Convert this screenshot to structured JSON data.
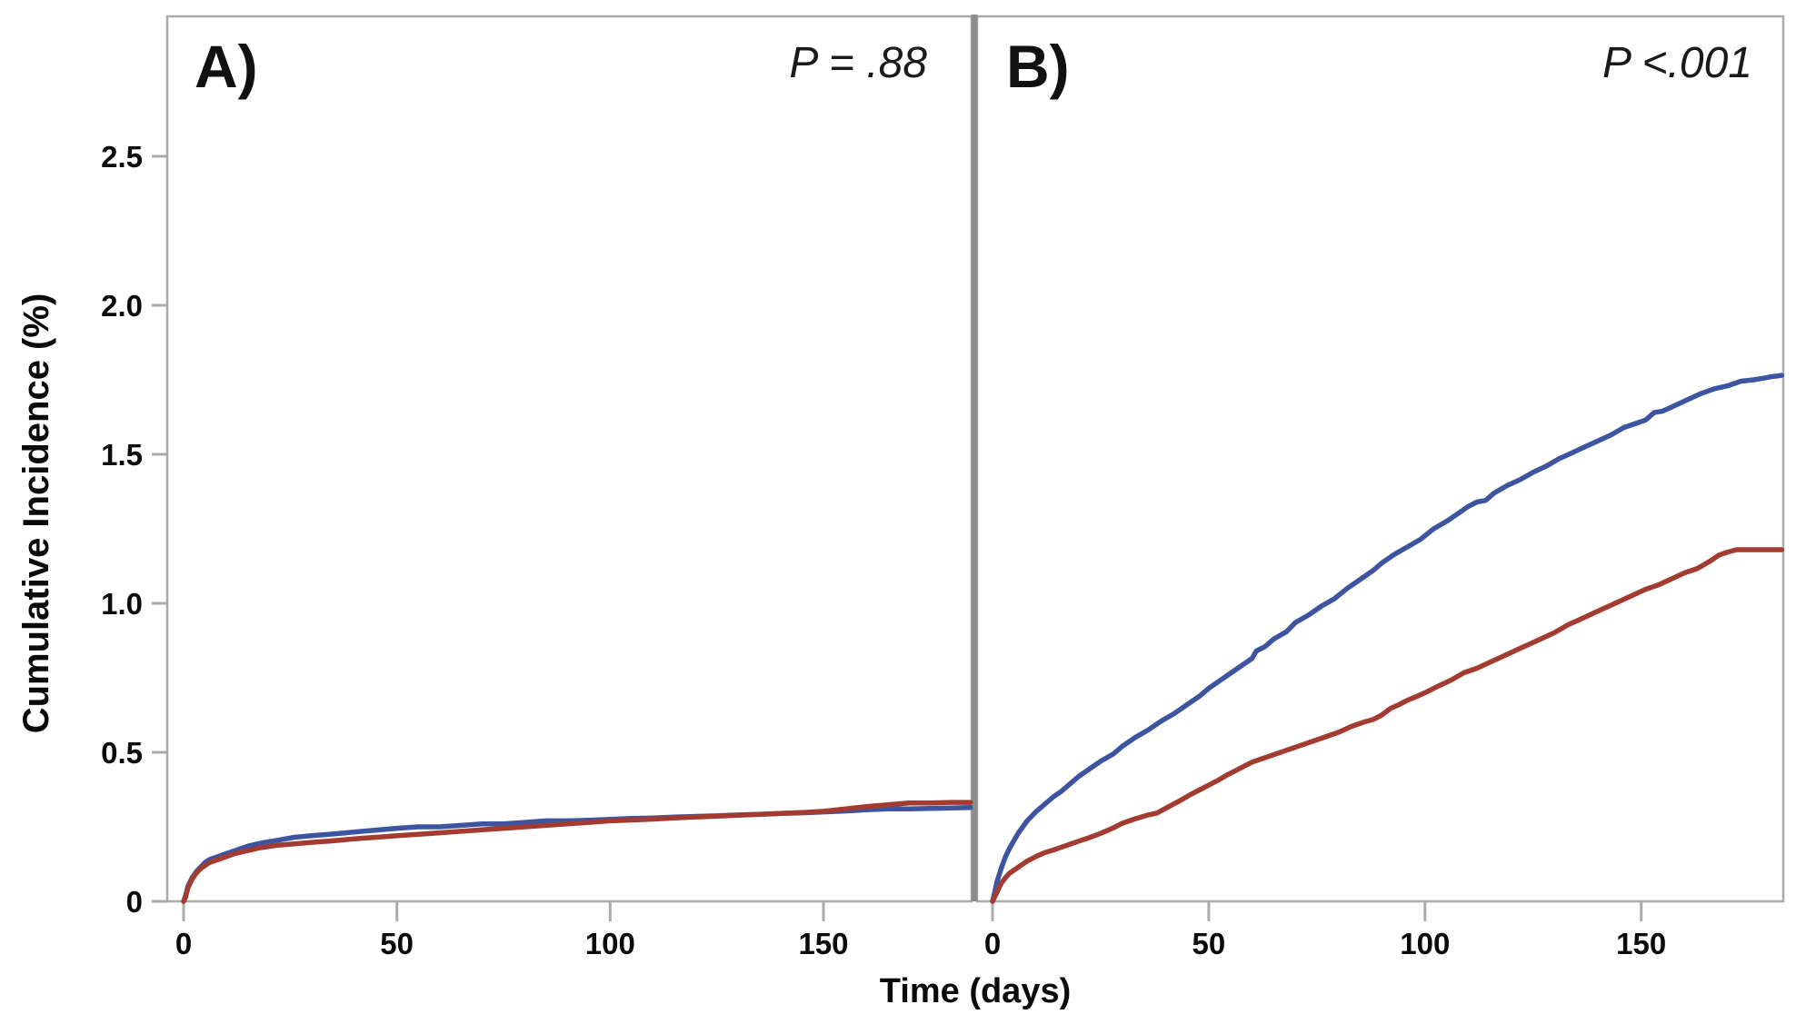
{
  "figure": {
    "y_axis_title": "Cumulative Incidence (%)",
    "x_axis_title": "Time (days)",
    "background": "#ffffff"
  },
  "colors": {
    "blue_series": "#3D55A1",
    "red_series": "#A33B31",
    "panel_border": "#ABABAB",
    "divider": "#8D8D8D",
    "tick_mark": "#ABABAB",
    "label_text": "#0a0a0a"
  },
  "chart_data": [
    {
      "type": "line",
      "panel": "A",
      "panel_label": "A)",
      "annotation": "P = .88",
      "xlabel": "Time (days)",
      "ylabel": "Cumulative Incidence (%)",
      "xlim": [
        -4,
        185
      ],
      "ylim": [
        0,
        2.98
      ],
      "grid": false,
      "legend": "none",
      "x_ticks": [
        0,
        50,
        100,
        150
      ],
      "x_tick_labels": [
        "0",
        "50",
        "100",
        "150"
      ],
      "y_ticks": [
        0,
        0.5,
        1.0,
        1.5,
        2.0,
        2.5
      ],
      "y_tick_labels": [
        "0",
        "0.5",
        "1.0",
        "1.5",
        "2.0",
        "2.5"
      ],
      "series": [
        {
          "name": "blue",
          "color": "#3D55A1",
          "points": [
            [
              0,
              0
            ],
            [
              0.5,
              0.02
            ],
            [
              1,
              0.05
            ],
            [
              2,
              0.08
            ],
            [
              3,
              0.1
            ],
            [
              4,
              0.115
            ],
            [
              5,
              0.13
            ],
            [
              6,
              0.14
            ],
            [
              8,
              0.15
            ],
            [
              10,
              0.16
            ],
            [
              12,
              0.17
            ],
            [
              15,
              0.185
            ],
            [
              18,
              0.195
            ],
            [
              22,
              0.205
            ],
            [
              26,
              0.215
            ],
            [
              30,
              0.22
            ],
            [
              34,
              0.225
            ],
            [
              38,
              0.23
            ],
            [
              42,
              0.235
            ],
            [
              46,
              0.24
            ],
            [
              50,
              0.245
            ],
            [
              55,
              0.25
            ],
            [
              60,
              0.25
            ],
            [
              65,
              0.255
            ],
            [
              70,
              0.26
            ],
            [
              75,
              0.26
            ],
            [
              80,
              0.265
            ],
            [
              85,
              0.27
            ],
            [
              90,
              0.27
            ],
            [
              95,
              0.272
            ],
            [
              100,
              0.275
            ],
            [
              105,
              0.278
            ],
            [
              110,
              0.28
            ],
            [
              115,
              0.283
            ],
            [
              120,
              0.285
            ],
            [
              125,
              0.287
            ],
            [
              130,
              0.29
            ],
            [
              135,
              0.292
            ],
            [
              140,
              0.295
            ],
            [
              145,
              0.297
            ],
            [
              150,
              0.3
            ],
            [
              155,
              0.303
            ],
            [
              160,
              0.307
            ],
            [
              165,
              0.31
            ],
            [
              170,
              0.31
            ],
            [
              175,
              0.312
            ],
            [
              180,
              0.313
            ],
            [
              184.5,
              0.315
            ]
          ]
        },
        {
          "name": "red",
          "color": "#A33B31",
          "points": [
            [
              0,
              0
            ],
            [
              0.5,
              0.015
            ],
            [
              1,
              0.045
            ],
            [
              2,
              0.075
            ],
            [
              3,
              0.095
            ],
            [
              4,
              0.11
            ],
            [
              5,
              0.12
            ],
            [
              6,
              0.13
            ],
            [
              8,
              0.14
            ],
            [
              10,
              0.15
            ],
            [
              12,
              0.16
            ],
            [
              15,
              0.17
            ],
            [
              18,
              0.18
            ],
            [
              22,
              0.188
            ],
            [
              26,
              0.193
            ],
            [
              30,
              0.198
            ],
            [
              34,
              0.202
            ],
            [
              38,
              0.207
            ],
            [
              42,
              0.212
            ],
            [
              46,
              0.216
            ],
            [
              50,
              0.22
            ],
            [
              55,
              0.225
            ],
            [
              60,
              0.23
            ],
            [
              65,
              0.235
            ],
            [
              70,
              0.24
            ],
            [
              75,
              0.245
            ],
            [
              80,
              0.25
            ],
            [
              85,
              0.255
            ],
            [
              90,
              0.26
            ],
            [
              95,
              0.265
            ],
            [
              100,
              0.27
            ],
            [
              105,
              0.273
            ],
            [
              110,
              0.276
            ],
            [
              115,
              0.28
            ],
            [
              120,
              0.283
            ],
            [
              125,
              0.286
            ],
            [
              130,
              0.289
            ],
            [
              135,
              0.292
            ],
            [
              140,
              0.295
            ],
            [
              145,
              0.298
            ],
            [
              150,
              0.302
            ],
            [
              155,
              0.31
            ],
            [
              160,
              0.318
            ],
            [
              165,
              0.324
            ],
            [
              170,
              0.33
            ],
            [
              175,
              0.33
            ],
            [
              180,
              0.332
            ],
            [
              184.5,
              0.332
            ]
          ]
        }
      ]
    },
    {
      "type": "line",
      "panel": "B",
      "panel_label": "B)",
      "annotation": "P <.001",
      "xlabel": "Time (days)",
      "ylabel": "Cumulative Incidence (%)",
      "xlim": [
        -3.5,
        183
      ],
      "ylim": [
        0,
        2.98
      ],
      "grid": false,
      "legend": "none",
      "x_ticks": [
        0,
        50,
        100,
        150
      ],
      "x_tick_labels": [
        "0",
        "50",
        "100",
        "150"
      ],
      "y_ticks": [
        0,
        0.5,
        1.0,
        1.5,
        2.0,
        2.5
      ],
      "y_tick_labels": [
        "0",
        "0.5",
        "1.0",
        "1.5",
        "2.0",
        "2.5"
      ],
      "series": [
        {
          "name": "blue",
          "color": "#3D55A1",
          "points": [
            [
              0,
              0
            ],
            [
              0.5,
              0.03
            ],
            [
              1,
              0.065
            ],
            [
              2,
              0.11
            ],
            [
              3,
              0.15
            ],
            [
              4,
              0.18
            ],
            [
              5,
              0.205
            ],
            [
              6,
              0.23
            ],
            [
              7,
              0.25
            ],
            [
              8,
              0.27
            ],
            [
              9,
              0.285
            ],
            [
              10,
              0.3
            ],
            [
              12,
              0.325
            ],
            [
              14,
              0.35
            ],
            [
              16,
              0.37
            ],
            [
              18,
              0.395
            ],
            [
              20,
              0.42
            ],
            [
              22,
              0.44
            ],
            [
              25,
              0.47
            ],
            [
              28,
              0.495
            ],
            [
              30,
              0.52
            ],
            [
              33,
              0.55
            ],
            [
              36,
              0.575
            ],
            [
              39,
              0.605
            ],
            [
              42,
              0.63
            ],
            [
              45,
              0.66
            ],
            [
              48,
              0.69
            ],
            [
              50,
              0.715
            ],
            [
              53,
              0.745
            ],
            [
              56,
              0.775
            ],
            [
              58,
              0.795
            ],
            [
              60,
              0.815
            ],
            [
              61,
              0.84
            ],
            [
              63,
              0.855
            ],
            [
              65,
              0.88
            ],
            [
              68,
              0.905
            ],
            [
              70,
              0.935
            ],
            [
              73,
              0.96
            ],
            [
              76,
              0.99
            ],
            [
              79,
              1.015
            ],
            [
              82,
              1.05
            ],
            [
              85,
              1.08
            ],
            [
              88,
              1.11
            ],
            [
              90,
              1.135
            ],
            [
              93,
              1.165
            ],
            [
              96,
              1.19
            ],
            [
              99,
              1.215
            ],
            [
              102,
              1.25
            ],
            [
              105,
              1.275
            ],
            [
              108,
              1.305
            ],
            [
              110,
              1.325
            ],
            [
              112,
              1.34
            ],
            [
              114,
              1.345
            ],
            [
              116,
              1.37
            ],
            [
              119,
              1.395
            ],
            [
              122,
              1.415
            ],
            [
              125,
              1.44
            ],
            [
              128,
              1.46
            ],
            [
              131,
              1.485
            ],
            [
              134,
              1.505
            ],
            [
              137,
              1.525
            ],
            [
              140,
              1.545
            ],
            [
              143,
              1.565
            ],
            [
              146,
              1.59
            ],
            [
              149,
              1.605
            ],
            [
              151,
              1.615
            ],
            [
              153,
              1.64
            ],
            [
              155,
              1.645
            ],
            [
              158,
              1.665
            ],
            [
              161,
              1.685
            ],
            [
              164,
              1.705
            ],
            [
              167,
              1.72
            ],
            [
              170,
              1.73
            ],
            [
              173,
              1.745
            ],
            [
              176,
              1.75
            ],
            [
              178,
              1.755
            ],
            [
              180,
              1.76
            ],
            [
              182.5,
              1.765
            ]
          ]
        },
        {
          "name": "red",
          "color": "#A33B31",
          "points": [
            [
              0,
              0
            ],
            [
              0.5,
              0.015
            ],
            [
              1,
              0.03
            ],
            [
              2,
              0.06
            ],
            [
              3,
              0.08
            ],
            [
              4,
              0.095
            ],
            [
              5,
              0.105
            ],
            [
              6,
              0.115
            ],
            [
              7,
              0.125
            ],
            [
              8,
              0.135
            ],
            [
              10,
              0.15
            ],
            [
              12,
              0.163
            ],
            [
              14,
              0.172
            ],
            [
              16,
              0.182
            ],
            [
              18,
              0.192
            ],
            [
              20,
              0.202
            ],
            [
              22,
              0.212
            ],
            [
              25,
              0.228
            ],
            [
              28,
              0.247
            ],
            [
              30,
              0.262
            ],
            [
              33,
              0.277
            ],
            [
              36,
              0.29
            ],
            [
              38,
              0.296
            ],
            [
              40,
              0.312
            ],
            [
              43,
              0.335
            ],
            [
              46,
              0.36
            ],
            [
              48,
              0.375
            ],
            [
              50,
              0.39
            ],
            [
              52,
              0.405
            ],
            [
              54,
              0.422
            ],
            [
              56,
              0.437
            ],
            [
              58,
              0.452
            ],
            [
              60,
              0.467
            ],
            [
              62,
              0.477
            ],
            [
              65,
              0.492
            ],
            [
              68,
              0.507
            ],
            [
              71,
              0.522
            ],
            [
              74,
              0.537
            ],
            [
              77,
              0.552
            ],
            [
              80,
              0.567
            ],
            [
              83,
              0.587
            ],
            [
              86,
              0.602
            ],
            [
              88,
              0.61
            ],
            [
              90,
              0.625
            ],
            [
              92,
              0.647
            ],
            [
              94,
              0.66
            ],
            [
              96,
              0.675
            ],
            [
              98,
              0.687
            ],
            [
              100,
              0.7
            ],
            [
              103,
              0.722
            ],
            [
              106,
              0.742
            ],
            [
              109,
              0.767
            ],
            [
              112,
              0.782
            ],
            [
              115,
              0.802
            ],
            [
              118,
              0.822
            ],
            [
              121,
              0.842
            ],
            [
              124,
              0.862
            ],
            [
              127,
              0.882
            ],
            [
              130,
              0.902
            ],
            [
              133,
              0.927
            ],
            [
              136,
              0.947
            ],
            [
              139,
              0.967
            ],
            [
              142,
              0.987
            ],
            [
              145,
              1.007
            ],
            [
              148,
              1.027
            ],
            [
              151,
              1.047
            ],
            [
              154,
              1.062
            ],
            [
              157,
              1.082
            ],
            [
              160,
              1.102
            ],
            [
              163,
              1.117
            ],
            [
              166,
              1.142
            ],
            [
              168,
              1.162
            ],
            [
              170,
              1.172
            ],
            [
              172,
              1.18
            ],
            [
              182.5,
              1.18
            ]
          ]
        }
      ]
    }
  ]
}
